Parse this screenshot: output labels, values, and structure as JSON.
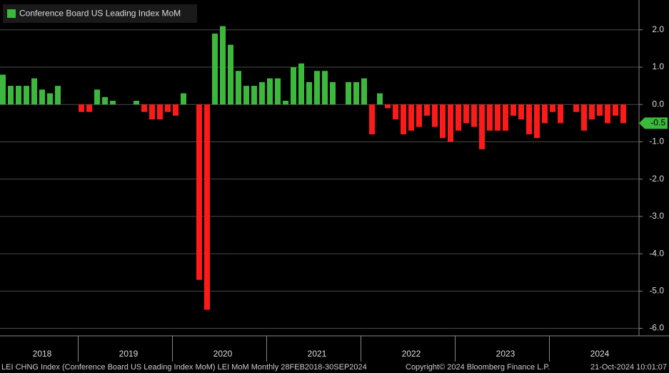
{
  "chart_data": {
    "type": "bar",
    "series": [
      {
        "name": "Conference Board US Leading Index MoM",
        "color": "#3cb83c",
        "negative_color": "#ff1a1a",
        "values": [
          0.8,
          0.5,
          0.5,
          0.5,
          0.7,
          0.4,
          0.3,
          0.5,
          0.0,
          0.0,
          -0.2,
          -0.2,
          0.4,
          0.2,
          0.1,
          0.0,
          0.0,
          0.1,
          -0.2,
          -0.4,
          -0.4,
          -0.2,
          -0.3,
          0.3,
          0.0,
          -4.7,
          -5.5,
          1.9,
          2.1,
          1.6,
          0.9,
          0.5,
          0.5,
          0.6,
          0.7,
          0.7,
          0.1,
          1.0,
          1.1,
          0.6,
          0.9,
          0.9,
          0.6,
          0.0,
          0.6,
          0.6,
          0.7,
          -0.8,
          0.3,
          -0.1,
          -0.4,
          -0.8,
          -0.7,
          -0.6,
          -0.3,
          -0.6,
          -0.9,
          -1.0,
          -0.7,
          -0.5,
          -0.6,
          -1.2,
          -0.7,
          -0.7,
          -0.7,
          -0.3,
          -0.4,
          -0.8,
          -0.9,
          -0.5,
          -0.2,
          -0.5,
          0.0,
          -0.2,
          -0.7,
          -0.4,
          -0.3,
          -0.5,
          -0.3,
          -0.5
        ]
      }
    ],
    "categories": [
      null,
      null,
      null,
      null,
      null,
      "2018",
      null,
      null,
      null,
      null,
      null,
      null,
      null,
      null,
      null,
      null,
      "2019",
      null,
      null,
      null,
      null,
      null,
      null,
      null,
      null,
      null,
      null,
      null,
      "2020",
      null,
      null,
      null,
      null,
      null,
      null,
      null,
      null,
      null,
      null,
      null,
      "2021",
      null,
      null,
      null,
      null,
      null,
      null,
      null,
      null,
      null,
      null,
      null,
      "2022",
      null,
      null,
      null,
      null,
      null,
      null,
      null,
      null,
      null,
      null,
      null,
      "2023",
      null,
      null,
      null,
      null,
      null,
      null,
      null,
      null,
      null,
      null,
      null,
      "2024",
      null,
      null,
      null
    ],
    "ylim": [
      -6.2,
      2.8
    ],
    "yticks": [
      {
        "value": 2,
        "label": "2.0"
      },
      {
        "value": 1,
        "label": "1.0"
      },
      {
        "value": 0,
        "label": "0.0"
      },
      {
        "value": -1,
        "label": "-1.0"
      },
      {
        "value": -2,
        "label": "-2.0"
      },
      {
        "value": -3,
        "label": "-3.0"
      },
      {
        "value": -4,
        "label": "-4.0"
      },
      {
        "value": -5,
        "label": "-5.0"
      },
      {
        "value": -6,
        "label": "-6.0"
      }
    ],
    "grid": true,
    "footer": {
      "left": "LEI CHNG Index (Conference Board US Leading Index MoM) LEI MoM  Monthly 28FEB2018-30SEP2024",
      "center": "Copyright© 2024 Bloomberg Finance L.P.",
      "right": "21-Oct-2024 10:01:07"
    }
  }
}
